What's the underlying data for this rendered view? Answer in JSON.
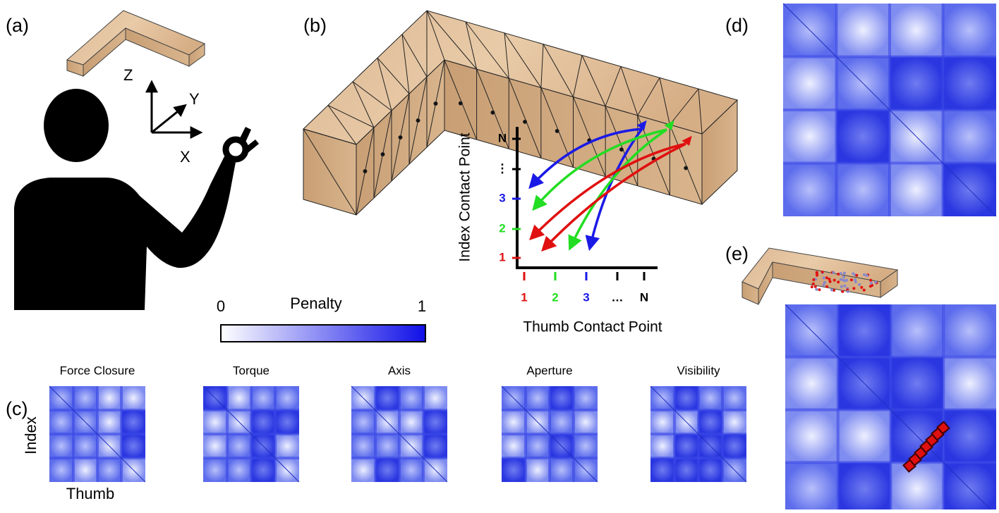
{
  "panels": {
    "a": "(a)",
    "b": "(b)",
    "c": "(c)",
    "d": "(d)",
    "e": "(e)"
  },
  "axes3d": {
    "z": "Z",
    "y": "Y",
    "x": "X"
  },
  "colorbar": {
    "title": "Penalty",
    "min_label": "0",
    "max_label": "1",
    "colors": [
      "#ffffff",
      "#1010e8"
    ]
  },
  "graph": {
    "y_label": "Index Contact Point",
    "x_label": "Thumb Contact Point",
    "y_ticks": [
      {
        "label": "N",
        "color": "#000000"
      },
      {
        "label": "⋮",
        "color": "#000000"
      },
      {
        "label": "3",
        "color": "#1a1ae6"
      },
      {
        "label": "2",
        "color": "#22dd22"
      },
      {
        "label": "1",
        "color": "#e01010"
      }
    ],
    "x_ticks": [
      {
        "label": "1",
        "color": "#e01010"
      },
      {
        "label": "2",
        "color": "#22dd22"
      },
      {
        "label": "3",
        "color": "#1a1ae6"
      },
      {
        "label": "…",
        "color": "#000000"
      },
      {
        "label": "N",
        "color": "#000000"
      }
    ]
  },
  "matrices": {
    "titles": [
      "Force Closure",
      "Torque",
      "Axis",
      "Aperture",
      "Visibility"
    ],
    "y_label": "Index",
    "x_label": "Thumb"
  }
}
